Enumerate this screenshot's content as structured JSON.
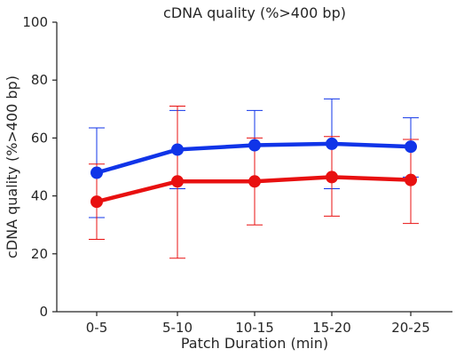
{
  "chart_data": {
    "type": "line",
    "title": "cDNA quality (%>400 bp)",
    "xlabel": "Patch Duration (min)",
    "ylabel": "cDNA quality (%>400 bp)",
    "categories": [
      "0-5",
      "5-10",
      "10-15",
      "15-20",
      "20-25"
    ],
    "ylim": [
      0,
      100
    ],
    "yticks": [
      0,
      20,
      40,
      60,
      80,
      100
    ],
    "grid": false,
    "legend": "none",
    "series": [
      {
        "color": "#1034e8",
        "values": [
          48.0,
          56.0,
          57.5,
          58.0,
          57.0
        ],
        "error_low": [
          32.5,
          42.5,
          45.5,
          42.5,
          46.5
        ],
        "error_high": [
          63.5,
          69.5,
          69.5,
          73.5,
          67.0
        ]
      },
      {
        "color": "#e81010",
        "values": [
          38.0,
          45.0,
          45.0,
          46.5,
          45.5
        ],
        "error_low": [
          25.0,
          18.5,
          30.0,
          33.0,
          30.5
        ],
        "error_high": [
          51.0,
          71.0,
          60.0,
          60.5,
          59.5
        ]
      }
    ]
  }
}
